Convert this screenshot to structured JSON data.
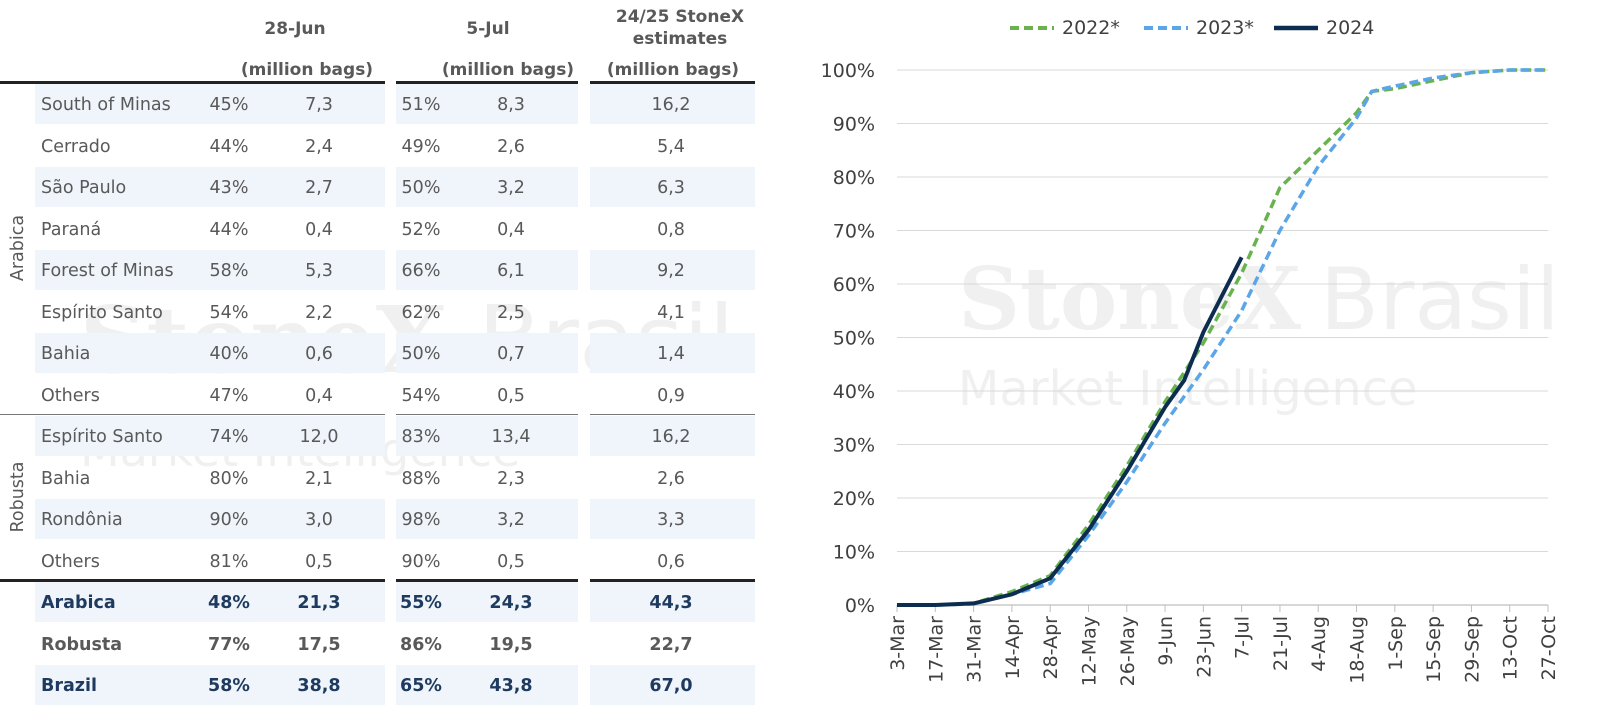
{
  "table": {
    "headers": {
      "col1_date": "28-Jun",
      "col1_unit": "(million bags)",
      "col2_date": "5-Jul",
      "col2_unit": "(million bags)",
      "col3_title": "24/25 StoneX estimates",
      "col3_unit": "(million bags)"
    },
    "groups": [
      "Arabica",
      "Robusta"
    ],
    "rows": [
      {
        "name": "South of Minas",
        "pct1": "45%",
        "val1": "7,3",
        "pct2": "51%",
        "val2": "8,3",
        "est": "16,2"
      },
      {
        "name": "Cerrado",
        "pct1": "44%",
        "val1": "2,4",
        "pct2": "49%",
        "val2": "2,6",
        "est": "5,4"
      },
      {
        "name": "São Paulo",
        "pct1": "43%",
        "val1": "2,7",
        "pct2": "50%",
        "val2": "3,2",
        "est": "6,3"
      },
      {
        "name": "Paraná",
        "pct1": "44%",
        "val1": "0,4",
        "pct2": "52%",
        "val2": "0,4",
        "est": "0,8"
      },
      {
        "name": "Forest of Minas",
        "pct1": "58%",
        "val1": "5,3",
        "pct2": "66%",
        "val2": "6,1",
        "est": "9,2"
      },
      {
        "name": "Espírito Santo",
        "pct1": "54%",
        "val1": "2,2",
        "pct2": "62%",
        "val2": "2,5",
        "est": "4,1"
      },
      {
        "name": "Bahia",
        "pct1": "40%",
        "val1": "0,6",
        "pct2": "50%",
        "val2": "0,7",
        "est": "1,4"
      },
      {
        "name": "Others",
        "pct1": "47%",
        "val1": "0,4",
        "pct2": "54%",
        "val2": "0,5",
        "est": "0,9"
      },
      {
        "name": "Espírito Santo",
        "pct1": "74%",
        "val1": "12,0",
        "pct2": "83%",
        "val2": "13,4",
        "est": "16,2"
      },
      {
        "name": "Bahia",
        "pct1": "80%",
        "val1": "2,1",
        "pct2": "88%",
        "val2": "2,3",
        "est": "2,6"
      },
      {
        "name": "Rondônia",
        "pct1": "90%",
        "val1": "3,0",
        "pct2": "98%",
        "val2": "3,2",
        "est": "3,3"
      },
      {
        "name": "Others",
        "pct1": "81%",
        "val1": "0,5",
        "pct2": "90%",
        "val2": "0,5",
        "est": "0,6"
      },
      {
        "name": "Arabica",
        "pct1": "48%",
        "val1": "21,3",
        "pct2": "55%",
        "val2": "24,3",
        "est": "44,3"
      },
      {
        "name": "Robusta",
        "pct1": "77%",
        "val1": "17,5",
        "pct2": "86%",
        "val2": "19,5",
        "est": "22,7"
      },
      {
        "name": "Brazil",
        "pct1": "58%",
        "val1": "38,8",
        "pct2": "65%",
        "val2": "43,8",
        "est": "67,0"
      }
    ]
  },
  "watermark": {
    "brand": "StoneX",
    "brand2": "Brasil",
    "sub": "Market Intelligence"
  },
  "colors": {
    "series_2022": "#6ab24f",
    "series_2023": "#5aa6e8",
    "series_2024": "#0d2d50",
    "band": "#eff5fb",
    "highlight_text": "#1f3a5f"
  },
  "chart_data": {
    "type": "line",
    "title": "",
    "xlabel": "",
    "ylabel": "",
    "x": [
      "3-Mar",
      "17-Mar",
      "31-Mar",
      "14-Apr",
      "28-Apr",
      "12-May",
      "26-May",
      "9-Jun",
      "23-Jun",
      "7-Jul",
      "21-Jul",
      "4-Aug",
      "18-Aug",
      "1-Sep",
      "15-Sep",
      "29-Sep",
      "13-Oct",
      "27-Oct"
    ],
    "yticks": [
      "0%",
      "10%",
      "20%",
      "30%",
      "40%",
      "50%",
      "60%",
      "70%",
      "80%",
      "90%",
      "100%"
    ],
    "ylim": [
      0,
      100
    ],
    "grid": "horizontal",
    "legend_position": "top",
    "series": [
      {
        "name": "2022*",
        "style": "dashed",
        "x": [
          0,
          1,
          2,
          3,
          4,
          5,
          6,
          7,
          8,
          9,
          10,
          11,
          12,
          12.4,
          13,
          14,
          15,
          16,
          17
        ],
        "values": [
          0,
          0,
          0.3,
          2.5,
          5.5,
          15,
          26,
          38,
          49,
          62,
          78,
          85,
          92,
          96,
          96.5,
          98,
          99.5,
          100,
          100
        ]
      },
      {
        "name": "2023*",
        "style": "dashed",
        "x": [
          0,
          1,
          2,
          3,
          4,
          5,
          6,
          7,
          8,
          9,
          10,
          11,
          12,
          12.4,
          13,
          14,
          15,
          16,
          17
        ],
        "values": [
          0,
          0,
          0.2,
          2,
          4,
          13,
          23,
          34,
          44,
          55,
          70,
          82,
          91,
          96,
          97,
          98.5,
          99.5,
          100,
          100
        ]
      },
      {
        "name": "2024",
        "style": "solid",
        "x": [
          0,
          1,
          2,
          3,
          4,
          5,
          6,
          7,
          7.5,
          8,
          9
        ],
        "values": [
          0,
          0,
          0.3,
          2,
          5,
          14,
          25,
          37,
          42,
          51,
          65
        ]
      }
    ]
  }
}
